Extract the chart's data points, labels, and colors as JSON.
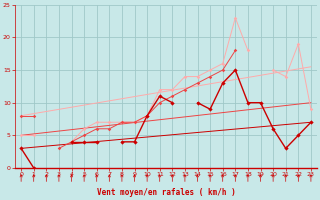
{
  "x": [
    0,
    1,
    2,
    3,
    4,
    5,
    6,
    7,
    8,
    9,
    10,
    11,
    12,
    13,
    14,
    15,
    16,
    17,
    18,
    19,
    20,
    21,
    22,
    23
  ],
  "y_dark": [
    3,
    0,
    null,
    null,
    4,
    4,
    4,
    null,
    4,
    4,
    8,
    11,
    10,
    null,
    10,
    9,
    13,
    15,
    10,
    10,
    6,
    3,
    5,
    7
  ],
  "y_mid": [
    8,
    8,
    null,
    3,
    4,
    5,
    6,
    6,
    7,
    7,
    8,
    10,
    11,
    12,
    13,
    14,
    15,
    18,
    null,
    null,
    null,
    null,
    null,
    null
  ],
  "y_light": [
    5,
    5,
    null,
    null,
    4,
    6,
    7,
    7,
    7,
    7,
    8,
    12,
    12,
    14,
    14,
    15,
    16,
    23,
    18,
    null,
    15,
    14,
    19,
    9
  ],
  "trend_x": [
    0,
    23
  ],
  "trend1_y": [
    3.0,
    7.0
  ],
  "trend2_y": [
    5.0,
    10.0
  ],
  "trend3_y": [
    8.0,
    15.5
  ],
  "bg_color": "#c8e8e8",
  "grid_color": "#a0c8c8",
  "color_dark": "#cc0000",
  "color_mid": "#ee4444",
  "color_light": "#ffaaaa",
  "xlabel": "Vent moyen/en rafales ( km/h )",
  "ylim": [
    0,
    25
  ],
  "xlim": [
    -0.5,
    23.5
  ],
  "yticks": [
    0,
    5,
    10,
    15,
    20,
    25
  ],
  "xticks": [
    0,
    1,
    2,
    3,
    4,
    5,
    6,
    7,
    8,
    9,
    10,
    11,
    12,
    13,
    14,
    15,
    16,
    17,
    18,
    19,
    20,
    21,
    22,
    23
  ]
}
